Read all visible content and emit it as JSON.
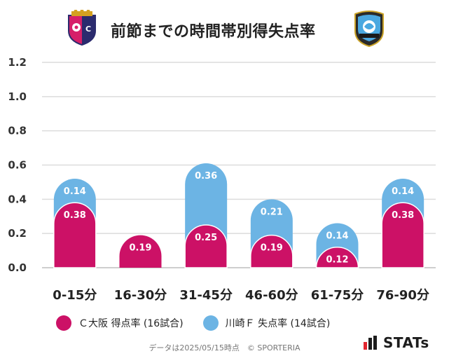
{
  "header": {
    "title": "前節までの時間帯別得失点率",
    "left_logo_icon": "cerezo-osaka-crest-icon",
    "right_logo_icon": "kawasaki-frontale-crest-icon"
  },
  "chart_data": {
    "type": "bar",
    "stacked": true,
    "categories": [
      "0-15分",
      "16-30分",
      "31-45分",
      "46-60分",
      "61-75分",
      "76-90分"
    ],
    "series": [
      {
        "name": "Ｃ大阪 得点率 (16試合)",
        "color": "#cc1166",
        "values": [
          0.38,
          0.19,
          0.25,
          0.19,
          0.12,
          0.38
        ]
      },
      {
        "name": "川崎Ｆ 失点率 (14試合)",
        "color": "#6cb4e4",
        "values": [
          0.14,
          0,
          0.36,
          0.21,
          0.14,
          0.14
        ]
      }
    ],
    "y_ticks": [
      "1.2",
      "1.0",
      "0.8",
      "0.6",
      "0.4",
      "0.2",
      "0.0"
    ],
    "ylim": [
      0,
      1.2
    ],
    "grid": true,
    "legend_position": "bottom"
  },
  "footer": {
    "note": "データは2025/05/15時点　© SPORTERIA",
    "brand": "STATs",
    "brand_icon": "stats-bars-icon"
  }
}
